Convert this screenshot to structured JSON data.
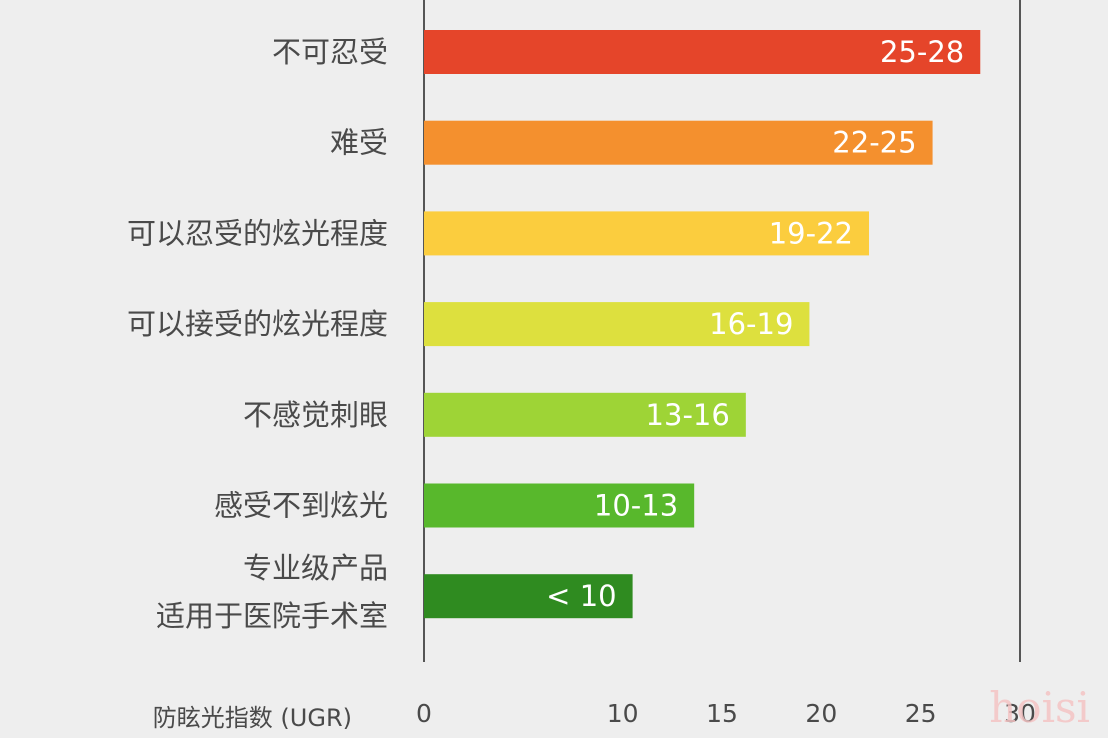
{
  "chart_data": {
    "type": "bar",
    "orientation": "horizontal",
    "categories": [
      "不可忍受",
      "难受",
      "可以忍受的炫光程度",
      "可以接受的炫光程度",
      "不感觉刺眼",
      "感受不到炫光",
      "专业级产品\n适用于医院手术室"
    ],
    "values": [
      28,
      25.6,
      22.4,
      19.4,
      16.2,
      13.6,
      10.5
    ],
    "bar_labels": [
      "25-28",
      "22-25",
      "19-22",
      "16-19",
      "13-16",
      "10-13",
      "< 10"
    ],
    "colors": [
      "#e5452a",
      "#f4902e",
      "#fbcd3e",
      "#dde03e",
      "#9ed436",
      "#58b82c",
      "#2f8b20"
    ],
    "xlabel": "防眩光指数 (UGR)",
    "xticks": [
      0,
      10,
      15,
      20,
      25,
      30
    ],
    "xlim": [
      0,
      30
    ],
    "grid": false
  },
  "watermark": "hoisi"
}
